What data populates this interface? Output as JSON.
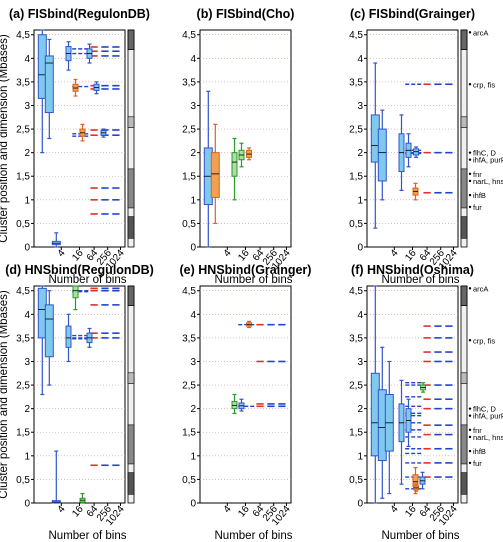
{
  "figure": {
    "xlabel": "Number of bins",
    "ylabel": "Cluster position and dimension (Mbases)"
  },
  "chart_data": [
    {
      "type": "boxplot",
      "panel_label": "(a)",
      "title": "FISbind(RegulonDB)",
      "xlabel": "Number of bins",
      "ylabel": "Cluster position and dimension (Mbases)",
      "ylim": [
        0,
        4.6
      ],
      "yticks": [
        "0",
        "0,5",
        "1",
        "1,5",
        "2",
        "2,5",
        "3",
        "3,5",
        "4",
        "4,5"
      ],
      "xticks": [
        "4",
        "16",
        "64",
        "256",
        "1024"
      ],
      "has_sidebar": true,
      "boxes": [
        {
          "bin": 4,
          "color": "#3355cc",
          "fill": "#7fc8ee",
          "q1": 3.15,
          "q3": 4.5,
          "median": 3.65,
          "wlo": 2.0,
          "whi": 4.6
        },
        {
          "bin": 4,
          "color": "#3355cc",
          "fill": "#7fc8ee",
          "q1": 2.85,
          "q3": 4.05,
          "median": 3.9,
          "wlo": 2.3,
          "whi": 4.4
        },
        {
          "bin": 4,
          "color": "#3355cc",
          "fill": "#7fc8ee",
          "q1": 0.05,
          "q3": 0.12,
          "median": 0.08,
          "wlo": 0.0,
          "whi": 0.3
        },
        {
          "bin": 16,
          "color": "#3355cc",
          "fill": "#7fc8ee",
          "q1": 3.95,
          "q3": 4.25,
          "median": 4.1,
          "wlo": 3.75,
          "whi": 4.35
        },
        {
          "bin": 16,
          "color": "#e06020",
          "fill": "#f0a050",
          "q1": 3.3,
          "q3": 3.45,
          "median": 3.37,
          "wlo": 3.2,
          "whi": 3.55
        },
        {
          "bin": 16,
          "color": "#e06020",
          "fill": "#f0a050",
          "q1": 2.35,
          "q3": 2.5,
          "median": 2.42,
          "wlo": 2.25,
          "whi": 2.6
        },
        {
          "bin": 16,
          "color": "#3355cc",
          "fill": "#7fc8ee",
          "q1": 4.0,
          "q3": 4.2,
          "median": 4.1,
          "wlo": 3.9,
          "whi": 4.3
        },
        {
          "bin": 16,
          "color": "#3355cc",
          "fill": "#7fc8ee",
          "q1": 3.32,
          "q3": 3.45,
          "median": 3.38,
          "wlo": 3.25,
          "whi": 3.5
        },
        {
          "bin": 16,
          "color": "#3355cc",
          "fill": "#7fc8ee",
          "q1": 2.37,
          "q3": 2.47,
          "median": 2.42,
          "wlo": 2.33,
          "whi": 2.5
        }
      ],
      "blue_median_lines": [
        4.2,
        4.1,
        3.4,
        2.4,
        2.35
      ],
      "level_dashes": [
        4.24,
        4.15,
        4.05,
        3.42,
        3.35,
        2.48,
        2.37,
        1.25,
        1.0,
        0.7
      ],
      "annotations": []
    },
    {
      "type": "boxplot",
      "panel_label": "(b)",
      "title": "FISbind(Cho)",
      "xlabel": "Number of bins",
      "ylabel": "",
      "ylim": [
        0,
        4.6
      ],
      "yticks": [
        "0",
        "0,5",
        "1",
        "1,5",
        "2",
        "2,5",
        "3",
        "3,5",
        "4",
        "4,5"
      ],
      "xticks": [
        "4",
        "16",
        "64",
        "256",
        "1024"
      ],
      "has_sidebar": false,
      "boxes": [
        {
          "bin": 4,
          "color": "#3355cc",
          "fill": "#7fc8ee",
          "q1": 0.9,
          "q3": 2.1,
          "median": 1.5,
          "wlo": 0.0,
          "whi": 3.3
        },
        {
          "bin": 4,
          "color": "#e06020",
          "fill": "#f0a050",
          "q1": 1.05,
          "q3": 2.0,
          "median": 1.55,
          "wlo": 0.5,
          "whi": 2.6
        },
        {
          "bin": 16,
          "color": "#2a9a2a",
          "fill": "#a8e0a0",
          "q1": 1.5,
          "q3": 2.0,
          "median": 1.8,
          "wlo": 1.0,
          "whi": 2.3
        },
        {
          "bin": 16,
          "color": "#2a9a2a",
          "fill": "#a8e0a0",
          "q1": 1.85,
          "q3": 2.05,
          "median": 1.95,
          "wlo": 1.7,
          "whi": 2.2
        },
        {
          "bin": 64,
          "color": "#e06020",
          "fill": "#f0a050",
          "q1": 1.9,
          "q3": 2.05,
          "median": 1.97,
          "wlo": 1.85,
          "whi": 2.1
        }
      ],
      "blue_median_lines": [],
      "level_dashes": [],
      "annotations": []
    },
    {
      "type": "boxplot",
      "panel_label": "(c)",
      "title": "FISbind(Grainger)",
      "xlabel": "Number of bins",
      "ylabel": "",
      "ylim": [
        0,
        4.6
      ],
      "yticks": [
        "0",
        "0,5",
        "1",
        "1,5",
        "2",
        "2,5",
        "3",
        "3,5",
        "4",
        "4,5"
      ],
      "xticks": [
        "4",
        "16",
        "64",
        "256",
        "1024"
      ],
      "has_sidebar": true,
      "boxes": [
        {
          "bin": 4,
          "color": "#3355cc",
          "fill": "#7fc8ee",
          "q1": 1.8,
          "q3": 2.8,
          "median": 2.15,
          "wlo": 0.4,
          "whi": 3.9
        },
        {
          "bin": 4,
          "color": "#3355cc",
          "fill": "#7fc8ee",
          "q1": 1.4,
          "q3": 2.5,
          "median": 2.0,
          "wlo": 1.0,
          "whi": 2.9
        },
        {
          "bin": 16,
          "color": "#3355cc",
          "fill": "#7fc8ee",
          "q1": 1.6,
          "q3": 2.4,
          "median": 2.0,
          "wlo": 1.2,
          "whi": 2.8
        },
        {
          "bin": 16,
          "color": "#3355cc",
          "fill": "#7fc8ee",
          "q1": 1.9,
          "q3": 2.2,
          "median": 2.05,
          "wlo": 1.7,
          "whi": 2.4
        },
        {
          "bin": 16,
          "color": "#e06020",
          "fill": "#f0a050",
          "q1": 1.1,
          "q3": 1.25,
          "median": 1.18,
          "wlo": 1.0,
          "whi": 1.35
        },
        {
          "bin": 64,
          "color": "#3355cc",
          "fill": "#7fc8ee",
          "q1": 1.95,
          "q3": 2.08,
          "median": 2.02,
          "wlo": 1.9,
          "whi": 2.12
        }
      ],
      "blue_median_lines": [
        3.45,
        2.05,
        2.0,
        1.98
      ],
      "level_dashes": [
        3.45,
        2.0,
        1.15
      ],
      "annotations": [
        {
          "label": "arcA",
          "y": 4.55
        },
        {
          "label": "crp, fis",
          "y": 3.45
        },
        {
          "label": "flhC, D",
          "y": 2.0
        },
        {
          "label": "ihfA, purR",
          "y": 1.85
        },
        {
          "label": "fnr",
          "y": 1.55
        },
        {
          "label": "narL, hns",
          "y": 1.4
        },
        {
          "label": "ihfB",
          "y": 1.1
        },
        {
          "label": "fur",
          "y": 0.85
        }
      ]
    },
    {
      "type": "boxplot",
      "panel_label": "(d)",
      "title": "HNSbind(RegulonDB)",
      "xlabel": "Number of bins",
      "ylabel": "Cluster position and dimension (Mbases)",
      "ylim": [
        0,
        4.6
      ],
      "yticks": [
        "0",
        "0,5",
        "1",
        "1,5",
        "2",
        "2,5",
        "3",
        "3,5",
        "4",
        "4,5"
      ],
      "xticks": [
        "4",
        "16",
        "64",
        "256",
        "1024"
      ],
      "has_sidebar": true,
      "boxes": [
        {
          "bin": 4,
          "color": "#3355cc",
          "fill": "#7fc8ee",
          "q1": 3.5,
          "q3": 4.55,
          "median": 4.1,
          "wlo": 2.3,
          "whi": 4.6
        },
        {
          "bin": 4,
          "color": "#3355cc",
          "fill": "#7fc8ee",
          "q1": 3.1,
          "q3": 4.2,
          "median": 3.9,
          "wlo": 2.5,
          "whi": 4.5
        },
        {
          "bin": 4,
          "color": "#3355cc",
          "fill": "#7fc8ee",
          "q1": 0.0,
          "q3": 0.05,
          "median": 0.02,
          "wlo": 0.0,
          "whi": 1.1
        },
        {
          "bin": 16,
          "color": "#3355cc",
          "fill": "#7fc8ee",
          "q1": 3.3,
          "q3": 3.75,
          "median": 3.5,
          "wlo": 3.0,
          "whi": 4.0
        },
        {
          "bin": 16,
          "color": "#2a9a2a",
          "fill": "#a8e0a0",
          "q1": 4.35,
          "q3": 4.6,
          "median": 4.5,
          "wlo": 4.1,
          "whi": 4.6
        },
        {
          "bin": 16,
          "color": "#2a9a2a",
          "fill": "#a8e0a0",
          "q1": 0.02,
          "q3": 0.1,
          "median": 0.06,
          "wlo": 0.0,
          "whi": 0.2
        },
        {
          "bin": 16,
          "color": "#3355cc",
          "fill": "#7fc8ee",
          "q1": 3.4,
          "q3": 3.6,
          "median": 3.5,
          "wlo": 3.3,
          "whi": 3.7
        }
      ],
      "blue_median_lines": [
        4.5,
        4.48,
        3.55,
        3.5,
        3.48
      ],
      "level_dashes": [
        4.55,
        4.5,
        4.2,
        3.6,
        3.5,
        0.8
      ],
      "annotations": []
    },
    {
      "type": "boxplot",
      "panel_label": "(e)",
      "title": "HNSbind(Grainger)",
      "xlabel": "Number of bins",
      "ylabel": "",
      "ylim": [
        0,
        4.6
      ],
      "yticks": [
        "0",
        "0,5",
        "1",
        "1,5",
        "2",
        "2,5",
        "3",
        "3,5",
        "4",
        "4,5"
      ],
      "xticks": [
        "4",
        "16",
        "64",
        "256",
        "1024"
      ],
      "has_sidebar": false,
      "boxes": [
        {
          "bin": 16,
          "color": "#2a9a2a",
          "fill": "#a8e0a0",
          "q1": 2.0,
          "q3": 2.15,
          "median": 2.07,
          "wlo": 1.9,
          "whi": 2.3
        },
        {
          "bin": 16,
          "color": "#3355cc",
          "fill": "#7fc8ee",
          "q1": 2.0,
          "q3": 2.12,
          "median": 2.06,
          "wlo": 1.95,
          "whi": 2.2
        },
        {
          "bin": 64,
          "color": "#e06020",
          "fill": "#f0a050",
          "q1": 3.75,
          "q3": 3.82,
          "median": 3.78,
          "wlo": 3.72,
          "whi": 3.85
        }
      ],
      "blue_median_lines": [
        3.78,
        2.05
      ],
      "level_dashes": [
        3.78,
        3.0,
        2.1,
        2.05
      ],
      "annotations": []
    },
    {
      "type": "boxplot",
      "panel_label": "(f)",
      "title": "HNSbind(Oshima)",
      "xlabel": "Number of bins",
      "ylabel": "",
      "ylim": [
        0,
        4.6
      ],
      "yticks": [
        "0",
        "0,5",
        "1",
        "1,5",
        "2",
        "2,5",
        "3",
        "3,5",
        "4",
        "4,5"
      ],
      "xticks": [
        "4",
        "16",
        "64",
        "256",
        "1024"
      ],
      "has_sidebar": true,
      "boxes": [
        {
          "bin": 4,
          "color": "#3355cc",
          "fill": "#7fc8ee",
          "q1": 1.0,
          "q3": 2.75,
          "median": 1.7,
          "wlo": 0.0,
          "whi": 4.6
        },
        {
          "bin": 4,
          "color": "#3355cc",
          "fill": "#7fc8ee",
          "q1": 0.9,
          "q3": 2.4,
          "median": 1.6,
          "wlo": 0.1,
          "whi": 3.3
        },
        {
          "bin": 4,
          "color": "#3355cc",
          "fill": "#7fc8ee",
          "q1": 1.1,
          "q3": 2.3,
          "median": 1.7,
          "wlo": 0.2,
          "whi": 3.0
        },
        {
          "bin": 16,
          "color": "#3355cc",
          "fill": "#7fc8ee",
          "q1": 1.3,
          "q3": 2.1,
          "median": 1.7,
          "wlo": 0.4,
          "whi": 2.6
        },
        {
          "bin": 16,
          "color": "#3355cc",
          "fill": "#7fc8ee",
          "q1": 1.5,
          "q3": 2.0,
          "median": 1.75,
          "wlo": 1.2,
          "whi": 2.2
        },
        {
          "bin": 16,
          "color": "#e06020",
          "fill": "#f0a050",
          "q1": 0.35,
          "q3": 0.6,
          "median": 0.45,
          "wlo": 0.2,
          "whi": 0.75
        },
        {
          "bin": 16,
          "color": "#3355cc",
          "fill": "#7fc8ee",
          "q1": 0.4,
          "q3": 0.55,
          "median": 0.47,
          "wlo": 0.3,
          "whi": 0.65
        },
        {
          "bin": 64,
          "color": "#e06020",
          "fill": "#f0a050",
          "q1": 0.28,
          "q3": 0.36,
          "median": 0.32,
          "wlo": 0.25,
          "whi": 0.4
        },
        {
          "bin": 64,
          "color": "#2a9a2a",
          "fill": "#a8e0a0",
          "q1": 2.4,
          "q3": 2.5,
          "median": 2.45,
          "wlo": 2.35,
          "whi": 2.55
        }
      ],
      "blue_median_lines": [
        2.55,
        2.5,
        2.25,
        2.05,
        1.9,
        1.85,
        1.7,
        1.55,
        1.4,
        1.15,
        1.05,
        0.85,
        0.55,
        0.3
      ],
      "level_dashes": [
        3.75,
        3.5,
        3.2,
        3.0,
        2.5,
        2.2,
        2.0,
        1.65,
        1.45,
        1.15,
        0.85,
        0.55
      ],
      "annotations": [
        {
          "label": "arcA",
          "y": 4.55
        },
        {
          "label": "crp, fis",
          "y": 3.45
        },
        {
          "label": "flhC, D",
          "y": 2.0
        },
        {
          "label": "ihfA, purR",
          "y": 1.85
        },
        {
          "label": "fnr",
          "y": 1.55
        },
        {
          "label": "narL, hns",
          "y": 1.4
        },
        {
          "label": "ihfB",
          "y": 1.1
        },
        {
          "label": "fur",
          "y": 0.85
        }
      ]
    }
  ]
}
